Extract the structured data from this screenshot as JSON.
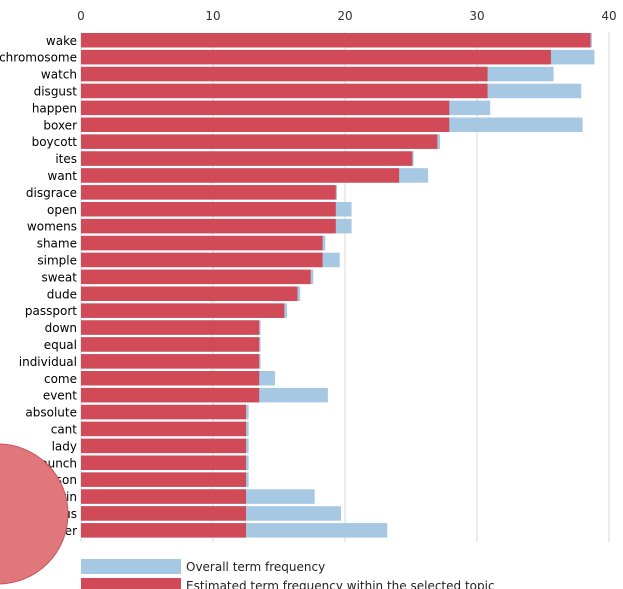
{
  "chart_data": {
    "type": "bar",
    "orientation": "horizontal",
    "xlim": [
      0,
      40
    ],
    "x_ticks": [
      0,
      10,
      20,
      30,
      40
    ],
    "grid": true,
    "categories": [
      "wake",
      "chromosome",
      "watch",
      "disgust",
      "happen",
      "boxer",
      "boycott",
      "ites",
      "want",
      "disgrace",
      "open",
      "womens",
      "shame",
      "simple",
      "sweat",
      "dude",
      "passport",
      "down",
      "equal",
      "individual",
      "come",
      "event",
      "absolute",
      "cant",
      "lady",
      "punch",
      "tyson",
      "grin",
      "ridiculous",
      "never"
    ],
    "series": [
      {
        "name": "Overall term frequency",
        "color": "#a6c8e2",
        "values": [
          38.7,
          38.9,
          35.8,
          37.9,
          31.0,
          38.0,
          27.2,
          25.2,
          26.3,
          19.4,
          20.5,
          20.5,
          18.5,
          19.6,
          17.6,
          16.6,
          15.6,
          13.6,
          13.6,
          13.6,
          14.7,
          18.7,
          12.7,
          12.7,
          12.7,
          12.7,
          12.7,
          17.7,
          19.7,
          23.2
        ]
      },
      {
        "name": "Estimated term frequency within the selected topic",
        "color": "#d04a57",
        "values": [
          38.6,
          35.6,
          30.8,
          30.8,
          27.9,
          27.9,
          27.0,
          25.1,
          24.1,
          19.3,
          19.3,
          19.3,
          18.3,
          18.3,
          17.4,
          16.4,
          15.4,
          13.5,
          13.5,
          13.5,
          13.5,
          13.5,
          12.5,
          12.5,
          12.5,
          12.5,
          12.5,
          12.5,
          12.5,
          12.5
        ]
      }
    ],
    "legend_position": "bottom"
  }
}
